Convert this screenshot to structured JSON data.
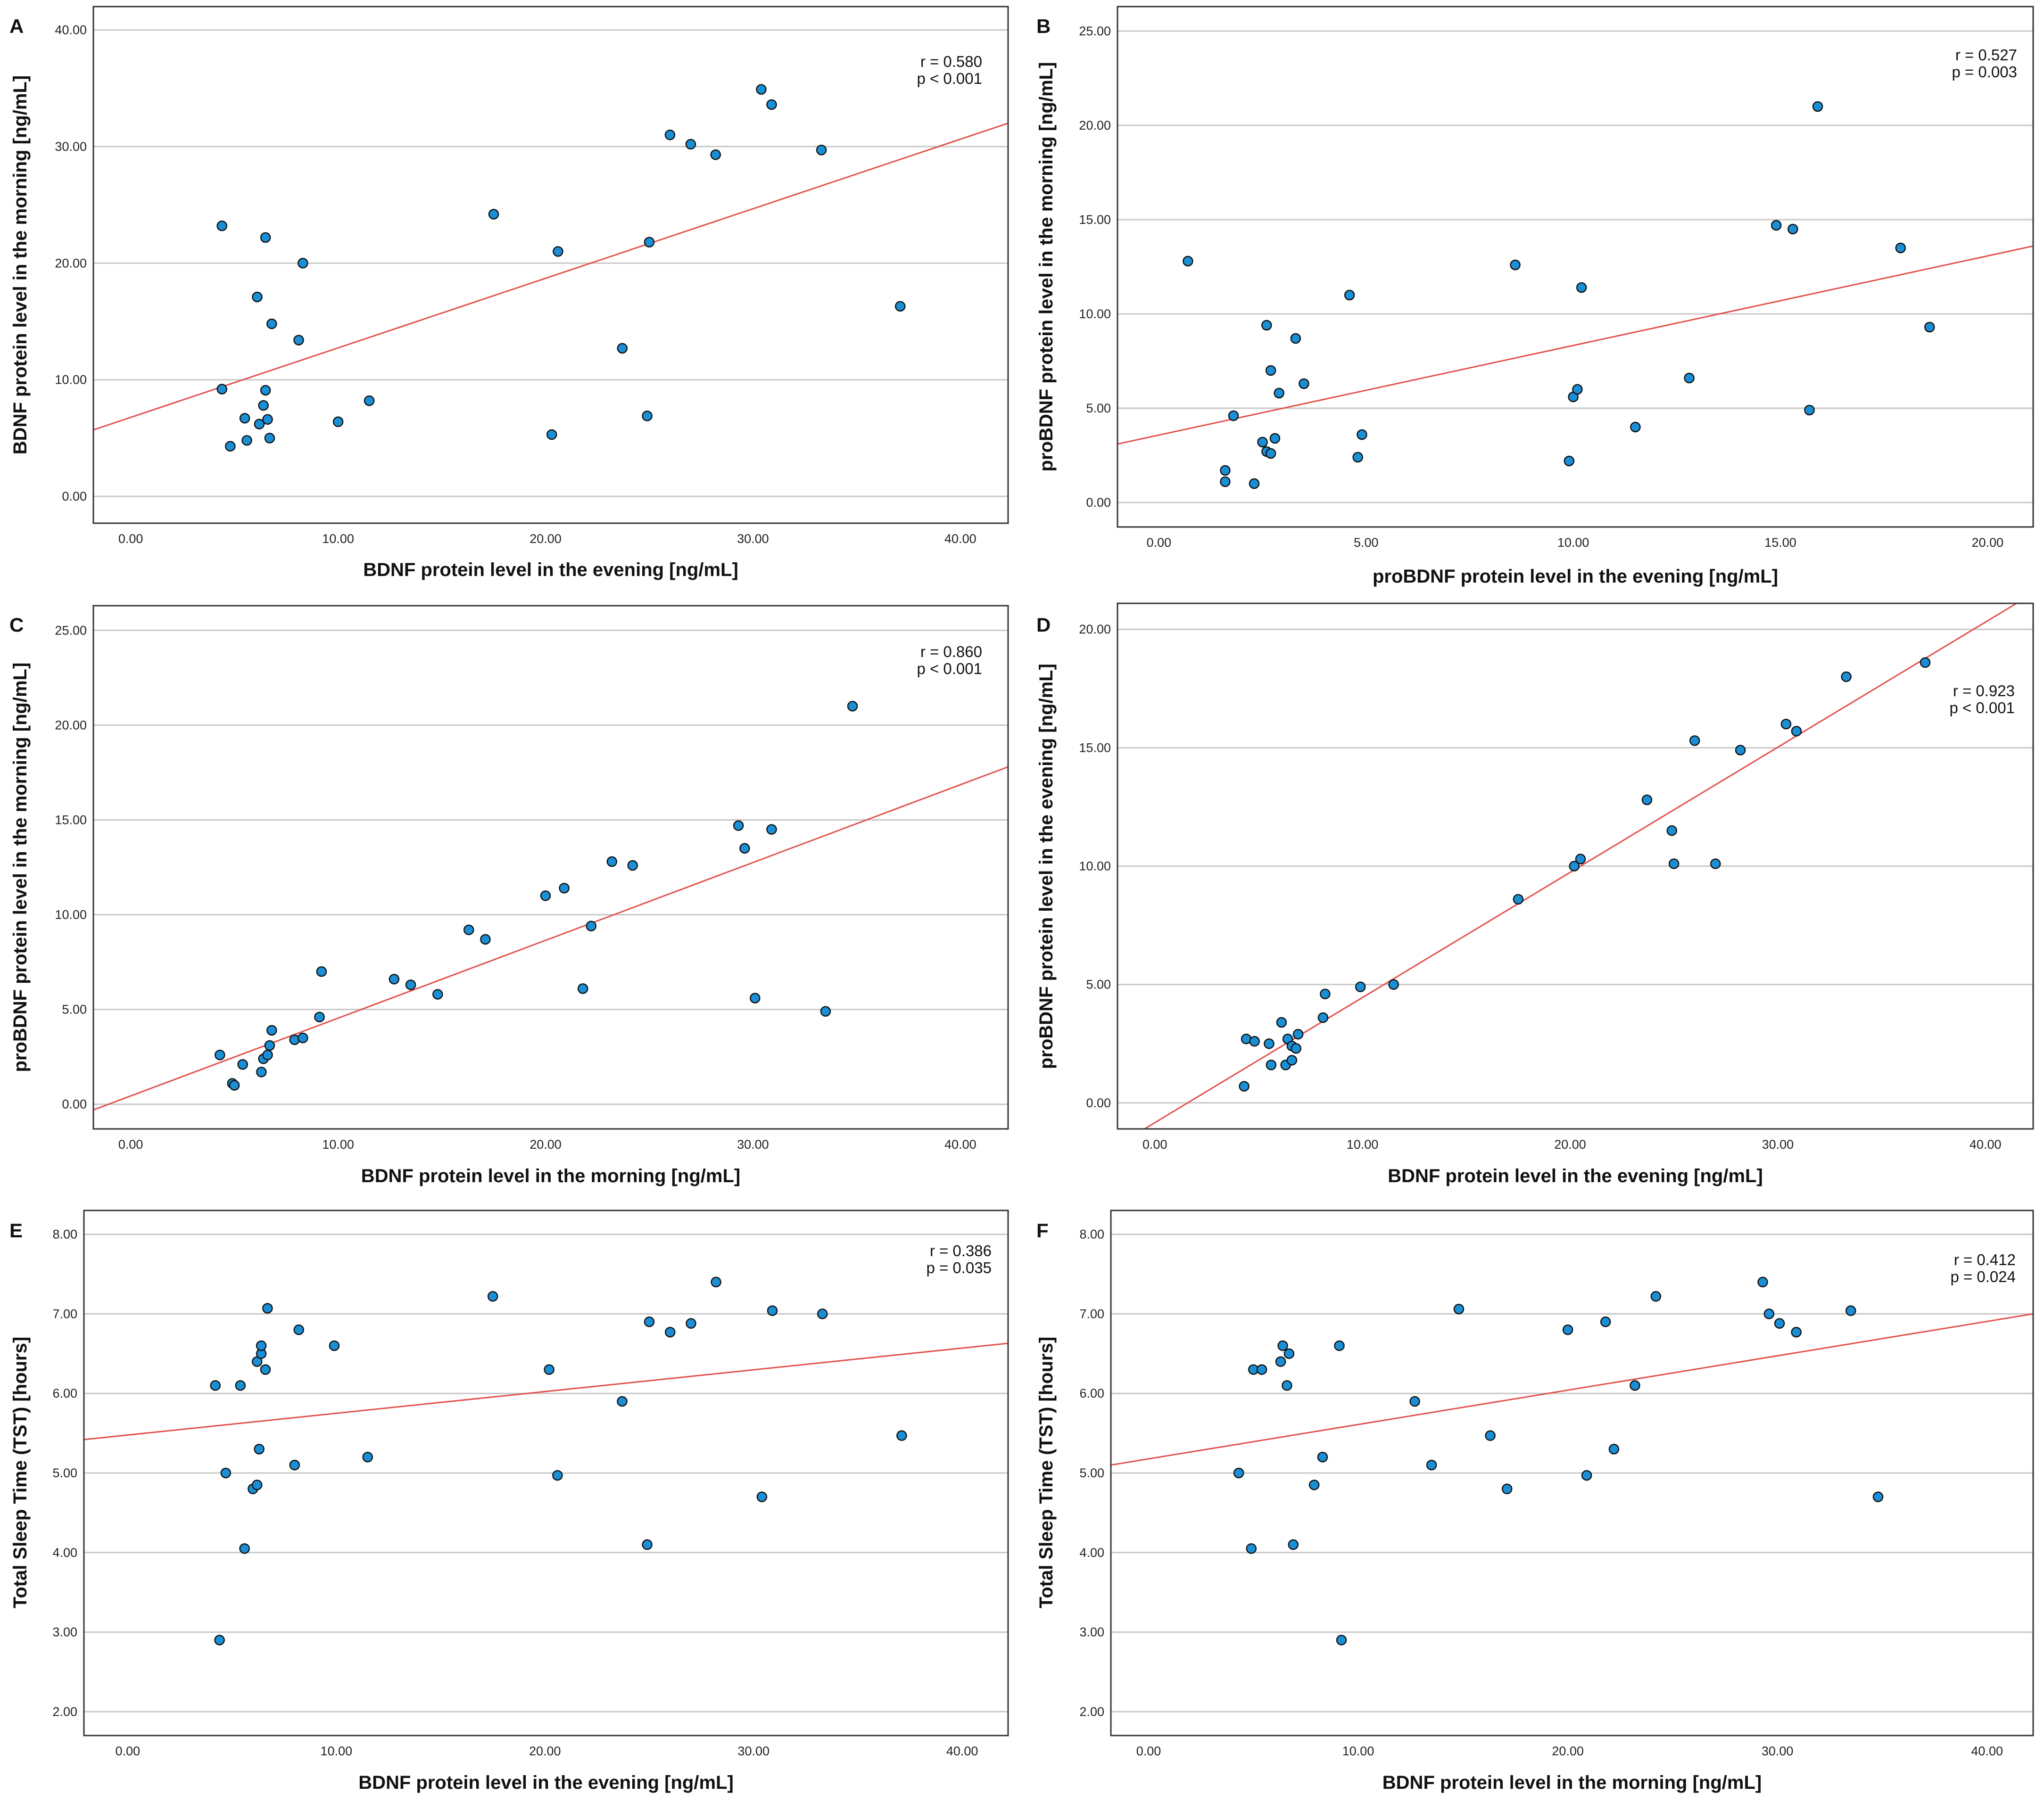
{
  "chart_data": [
    {
      "id": "A",
      "type": "scatter",
      "panel_label": "A",
      "xlabel": "BDNF protein level in the evening [ng/mL]",
      "ylabel": "BDNF protein level in the morning [ng/mL]",
      "xlim": [
        -1.8,
        42.3
      ],
      "ylim": [
        -2.3,
        42.0
      ],
      "xticks": [
        0,
        10,
        20,
        30,
        40
      ],
      "xtick_labels": [
        "0.00",
        "10.00",
        "20.00",
        "30.00",
        "40.00"
      ],
      "yticks": [
        0,
        10,
        20,
        30,
        40
      ],
      "ytick_labels": [
        "0.00",
        "10.00",
        "20.00",
        "30.00",
        "40.00"
      ],
      "grid": true,
      "stat_r": "r = 0.580",
      "stat_p": "p < 0.001",
      "stats_position": "top-right",
      "fit_line": [
        [
          -1.8,
          5.7
        ],
        [
          42.3,
          32.0
        ]
      ],
      "points": [
        [
          4.4,
          23.2
        ],
        [
          6.5,
          22.2
        ],
        [
          8.3,
          20.0
        ],
        [
          6.1,
          17.1
        ],
        [
          6.8,
          14.8
        ],
        [
          8.1,
          13.4
        ],
        [
          4.4,
          9.2
        ],
        [
          6.5,
          9.1
        ],
        [
          5.5,
          6.7
        ],
        [
          6.4,
          7.8
        ],
        [
          6.6,
          6.6
        ],
        [
          6.2,
          6.2
        ],
        [
          5.6,
          4.8
        ],
        [
          6.7,
          5.0
        ],
        [
          4.8,
          4.3
        ],
        [
          10.0,
          6.4
        ],
        [
          11.5,
          8.2
        ],
        [
          17.5,
          24.2
        ],
        [
          20.6,
          21.0
        ],
        [
          25.0,
          21.8
        ],
        [
          23.7,
          12.7
        ],
        [
          20.3,
          5.3
        ],
        [
          24.9,
          6.9
        ],
        [
          26.0,
          31.0
        ],
        [
          27.0,
          30.2
        ],
        [
          28.2,
          29.3
        ],
        [
          30.4,
          34.9
        ],
        [
          30.9,
          33.6
        ],
        [
          33.3,
          29.7
        ],
        [
          37.1,
          16.3
        ]
      ]
    },
    {
      "id": "B",
      "type": "scatter",
      "panel_label": "B",
      "xlabel": "proBDNF protein level in the evening [ng/mL]",
      "ylabel": "proBDNF protein level in the morning [ng/mL]",
      "xlim": [
        -1.0,
        21.1
      ],
      "ylim": [
        -1.3,
        26.3
      ],
      "xticks": [
        0,
        5,
        10,
        15,
        20
      ],
      "xtick_labels": [
        "0.00",
        "5.00",
        "10.00",
        "15.00",
        "20.00"
      ],
      "yticks": [
        0,
        5,
        10,
        15,
        20,
        25
      ],
      "ytick_labels": [
        "0.00",
        "5.00",
        "10.00",
        "15.00",
        "20.00",
        "25.00"
      ],
      "grid": true,
      "stat_r": "r = 0.527",
      "stat_p": "p = 0.003",
      "stats_position": "top-right",
      "fit_line": [
        [
          -1.0,
          3.1
        ],
        [
          21.1,
          13.6
        ]
      ],
      "points": [
        [
          0.7,
          12.8
        ],
        [
          1.6,
          1.7
        ],
        [
          1.6,
          1.1
        ],
        [
          1.8,
          4.6
        ],
        [
          2.3,
          1.0
        ],
        [
          2.5,
          3.2
        ],
        [
          2.6,
          2.7
        ],
        [
          2.7,
          2.6
        ],
        [
          2.6,
          9.4
        ],
        [
          2.7,
          7.0
        ],
        [
          2.8,
          3.4
        ],
        [
          2.9,
          5.8
        ],
        [
          3.3,
          8.7
        ],
        [
          3.5,
          6.3
        ],
        [
          4.6,
          11.0
        ],
        [
          4.8,
          2.4
        ],
        [
          4.9,
          3.6
        ],
        [
          8.6,
          12.6
        ],
        [
          9.9,
          2.2
        ],
        [
          10.0,
          5.6
        ],
        [
          10.1,
          6.0
        ],
        [
          10.2,
          11.4
        ],
        [
          11.5,
          4.0
        ],
        [
          12.8,
          6.6
        ],
        [
          14.9,
          14.7
        ],
        [
          15.3,
          14.5
        ],
        [
          15.7,
          4.9
        ],
        [
          15.9,
          21.0
        ],
        [
          17.9,
          13.5
        ],
        [
          18.6,
          9.3
        ]
      ]
    },
    {
      "id": "C",
      "type": "scatter",
      "panel_label": "C",
      "xlabel": "BDNF protein level in the morning [ng/mL]",
      "ylabel": "proBDNF protein level in the morning [ng/mL]",
      "xlim": [
        -1.8,
        42.3
      ],
      "ylim": [
        -1.3,
        26.3
      ],
      "xticks": [
        0,
        10,
        20,
        30,
        40
      ],
      "xtick_labels": [
        "0.00",
        "10.00",
        "20.00",
        "30.00",
        "40.00"
      ],
      "yticks": [
        0,
        5,
        10,
        15,
        20,
        25
      ],
      "ytick_labels": [
        "0.00",
        "5.00",
        "10.00",
        "15.00",
        "20.00",
        "25.00"
      ],
      "grid": true,
      "stat_r": "r = 0.860",
      "stat_p": "p < 0.001",
      "stats_position": "top-right",
      "fit_line": [
        [
          -1.8,
          -0.3
        ],
        [
          42.3,
          17.8
        ]
      ],
      "points": [
        [
          4.3,
          2.6
        ],
        [
          4.9,
          1.1
        ],
        [
          5.0,
          1.0
        ],
        [
          5.4,
          2.1
        ],
        [
          6.3,
          1.7
        ],
        [
          6.4,
          2.4
        ],
        [
          6.6,
          2.6
        ],
        [
          6.7,
          3.1
        ],
        [
          6.8,
          3.9
        ],
        [
          7.9,
          3.4
        ],
        [
          8.3,
          3.5
        ],
        [
          9.1,
          4.6
        ],
        [
          9.2,
          7.0
        ],
        [
          12.7,
          6.6
        ],
        [
          13.5,
          6.3
        ],
        [
          14.8,
          5.8
        ],
        [
          16.3,
          9.2
        ],
        [
          17.1,
          8.7
        ],
        [
          20.0,
          11.0
        ],
        [
          20.9,
          11.4
        ],
        [
          21.8,
          6.1
        ],
        [
          22.2,
          9.4
        ],
        [
          23.2,
          12.8
        ],
        [
          24.2,
          12.6
        ],
        [
          29.3,
          14.7
        ],
        [
          29.6,
          13.5
        ],
        [
          30.1,
          5.6
        ],
        [
          30.9,
          14.5
        ],
        [
          33.5,
          4.9
        ],
        [
          34.8,
          21.0
        ]
      ]
    },
    {
      "id": "D",
      "type": "scatter",
      "panel_label": "D",
      "xlabel": "BDNF protein level in the evening [ng/mL]",
      "ylabel": "proBDNF protein level in the evening [ng/mL]",
      "xlim": [
        -1.8,
        42.3
      ],
      "ylim": [
        -1.1,
        21.1
      ],
      "xticks": [
        0,
        10,
        20,
        30,
        40
      ],
      "xtick_labels": [
        "0.00",
        "10.00",
        "20.00",
        "30.00",
        "40.00"
      ],
      "yticks": [
        0,
        5,
        10,
        15,
        20
      ],
      "ytick_labels": [
        "0.00",
        "5.00",
        "10.00",
        "15.00",
        "20.00"
      ],
      "grid": true,
      "stat_r": "r = 0.923",
      "stat_p": "p < 0.001",
      "stats_position": "top-right",
      "fit_line": [
        [
          -0.5,
          -1.1
        ],
        [
          41.5,
          21.1
        ]
      ],
      "points": [
        [
          4.3,
          0.7
        ],
        [
          4.4,
          2.7
        ],
        [
          4.8,
          2.6
        ],
        [
          5.5,
          2.5
        ],
        [
          5.6,
          1.6
        ],
        [
          6.1,
          3.4
        ],
        [
          6.3,
          1.6
        ],
        [
          6.4,
          2.7
        ],
        [
          6.6,
          2.4
        ],
        [
          6.6,
          1.8
        ],
        [
          6.8,
          2.3
        ],
        [
          6.9,
          2.9
        ],
        [
          8.1,
          3.6
        ],
        [
          8.2,
          4.6
        ],
        [
          9.9,
          4.9
        ],
        [
          11.5,
          5.0
        ],
        [
          17.5,
          8.6
        ],
        [
          20.2,
          10.0
        ],
        [
          20.5,
          10.3
        ],
        [
          23.7,
          12.8
        ],
        [
          24.9,
          11.5
        ],
        [
          25.0,
          10.1
        ],
        [
          26.0,
          15.3
        ],
        [
          27.0,
          10.1
        ],
        [
          28.2,
          14.9
        ],
        [
          30.4,
          16.0
        ],
        [
          30.9,
          15.7
        ],
        [
          33.3,
          18.0
        ],
        [
          37.1,
          18.6
        ]
      ]
    },
    {
      "id": "E",
      "type": "scatter",
      "panel_label": "E",
      "xlabel": "BDNF protein level in the evening [ng/mL]",
      "ylabel": "Total Sleep Time (TST) [hours]",
      "xlim": [
        -2.1,
        42.2
      ],
      "ylim": [
        1.7,
        8.3
      ],
      "xticks": [
        0,
        10,
        20,
        30,
        40
      ],
      "xtick_labels": [
        "0.00",
        "10.00",
        "20.00",
        "30.00",
        "40.00"
      ],
      "yticks": [
        2,
        3,
        4,
        5,
        6,
        7,
        8
      ],
      "ytick_labels": [
        "2.00",
        "3.00",
        "4.00",
        "5.00",
        "6.00",
        "7.00",
        "8.00"
      ],
      "grid": true,
      "stat_r": "r = 0.386",
      "stat_p": "p = 0.035",
      "stats_position": "top-right",
      "fit_line": [
        [
          -2.1,
          5.42
        ],
        [
          42.2,
          6.63
        ]
      ],
      "points": [
        [
          4.2,
          6.1
        ],
        [
          4.4,
          2.9
        ],
        [
          4.7,
          5.0
        ],
        [
          5.4,
          6.1
        ],
        [
          5.6,
          4.05
        ],
        [
          6.0,
          4.8
        ],
        [
          6.2,
          4.85
        ],
        [
          6.2,
          6.4
        ],
        [
          6.3,
          5.3
        ],
        [
          6.4,
          6.5
        ],
        [
          6.4,
          6.6
        ],
        [
          6.6,
          6.3
        ],
        [
          6.7,
          7.07
        ],
        [
          8.0,
          5.1
        ],
        [
          8.2,
          6.8
        ],
        [
          9.9,
          6.6
        ],
        [
          11.5,
          5.2
        ],
        [
          17.5,
          7.22
        ],
        [
          20.2,
          6.3
        ],
        [
          20.6,
          4.97
        ],
        [
          23.7,
          5.9
        ],
        [
          24.9,
          4.1
        ],
        [
          25.0,
          6.9
        ],
        [
          26.0,
          6.77
        ],
        [
          27.0,
          6.88
        ],
        [
          28.2,
          7.4
        ],
        [
          30.4,
          4.7
        ],
        [
          30.9,
          7.04
        ],
        [
          33.3,
          7.0
        ],
        [
          37.1,
          5.47
        ]
      ]
    },
    {
      "id": "F",
      "type": "scatter",
      "panel_label": "F",
      "xlabel": "BDNF protein level in the morning [ng/mL]",
      "ylabel": "Total Sleep Time (TST) [hours]",
      "xlim": [
        -1.8,
        42.2
      ],
      "ylim": [
        1.7,
        8.3
      ],
      "xticks": [
        0,
        10,
        20,
        30,
        40
      ],
      "xtick_labels": [
        "0.00",
        "10.00",
        "20.00",
        "30.00",
        "40.00"
      ],
      "yticks": [
        2,
        3,
        4,
        5,
        6,
        7,
        8
      ],
      "ytick_labels": [
        "2.00",
        "3.00",
        "4.00",
        "5.00",
        "6.00",
        "7.00",
        "8.00"
      ],
      "grid": true,
      "stat_r": "r = 0.412",
      "stat_p": "p = 0.024",
      "stats_position": "top-right",
      "fit_line": [
        [
          -1.8,
          5.1
        ],
        [
          42.2,
          7.0
        ]
      ],
      "points": [
        [
          4.3,
          5.0
        ],
        [
          4.9,
          4.05
        ],
        [
          5.0,
          6.3
        ],
        [
          5.4,
          6.3
        ],
        [
          6.3,
          6.4
        ],
        [
          6.4,
          6.6
        ],
        [
          6.6,
          6.1
        ],
        [
          6.7,
          6.5
        ],
        [
          6.9,
          4.1
        ],
        [
          7.9,
          4.85
        ],
        [
          8.3,
          5.2
        ],
        [
          9.1,
          6.6
        ],
        [
          9.2,
          2.9
        ],
        [
          12.7,
          5.9
        ],
        [
          13.5,
          5.1
        ],
        [
          14.8,
          7.06
        ],
        [
          16.3,
          5.47
        ],
        [
          17.1,
          4.8
        ],
        [
          20.0,
          6.8
        ],
        [
          20.9,
          4.97
        ],
        [
          21.8,
          6.9
        ],
        [
          22.2,
          5.3
        ],
        [
          23.2,
          6.1
        ],
        [
          24.2,
          7.22
        ],
        [
          29.3,
          7.4
        ],
        [
          29.6,
          7.0
        ],
        [
          30.1,
          6.88
        ],
        [
          30.9,
          6.77
        ],
        [
          33.5,
          7.04
        ],
        [
          34.8,
          4.7
        ]
      ]
    }
  ]
}
